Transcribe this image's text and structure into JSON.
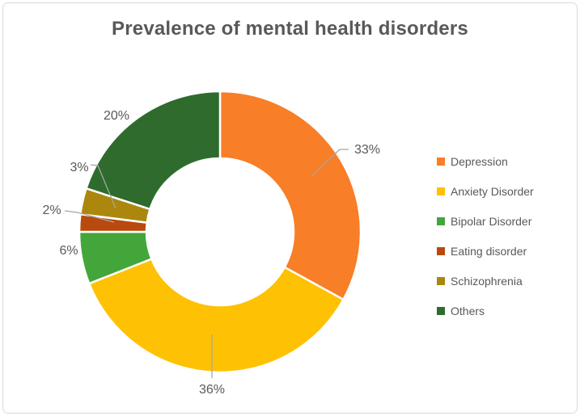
{
  "title": "Prevalence of mental health disorders",
  "colors": {
    "text": "#595959",
    "leader_line": "#A6A6A6",
    "frame_border": "#D9D9D9",
    "slice_gap": "#FFFFFF"
  },
  "legend": {
    "items": [
      {
        "label": "Depression",
        "color": "#F87E28"
      },
      {
        "label": "Anxiety Disorder",
        "color": "#FFC103"
      },
      {
        "label": "Bipolar Disorder",
        "color": "#43A63B"
      },
      {
        "label": "Eating disorder",
        "color": "#B94A0D"
      },
      {
        "label": "Schizophrenia",
        "color": "#AC870E"
      },
      {
        "label": "Others",
        "color": "#2E6B2D"
      }
    ]
  },
  "chart_data": {
    "type": "pie",
    "subtype": "donut",
    "title": "Prevalence of mental health disorders",
    "categories": [
      "Depression",
      "Anxiety Disorder",
      "Bipolar Disorder",
      "Eating disorder",
      "Schizophrenia",
      "Others"
    ],
    "values": [
      33,
      36,
      6,
      2,
      3,
      20
    ],
    "unit": "%",
    "data_labels": [
      "33%",
      "36%",
      "6%",
      "2%",
      "3%",
      "20%"
    ],
    "slice_colors": [
      "#F87E28",
      "#FFC103",
      "#43A63B",
      "#B94A0D",
      "#AC870E",
      "#2E6B2D"
    ],
    "start_angle_deg": 0,
    "direction": "clockwise",
    "donut_hole_ratio": 0.52,
    "legend_position": "right",
    "grid": false
  }
}
